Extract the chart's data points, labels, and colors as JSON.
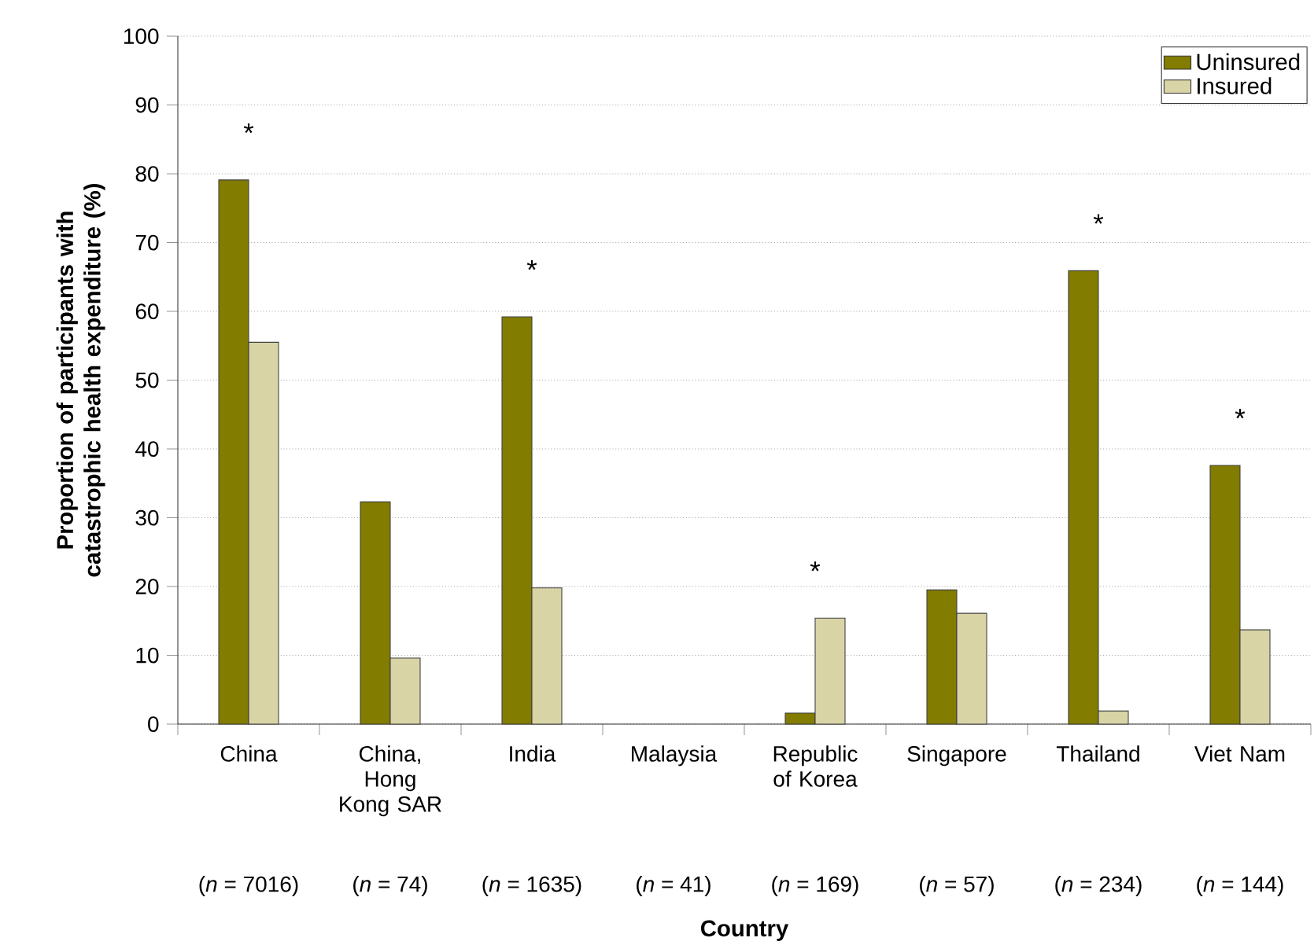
{
  "chart_data": {
    "type": "bar",
    "xlabel": "Country",
    "ylabel": "Proportion of participants with catastrophic health expenditure (%)",
    "categories": [
      "China",
      "China, Hong Kong SAR",
      "India",
      "Malaysia",
      "Republic of Korea",
      "Singapore",
      "Thailand",
      "Viet Nam"
    ],
    "series": [
      {
        "name": "Uninsured",
        "color": "#827c00",
        "values": [
          79.1,
          32.3,
          59.2,
          null,
          1.6,
          19.5,
          65.9,
          37.6
        ]
      },
      {
        "name": "Insured",
        "color": "#d9d4a6",
        "values": [
          55.5,
          9.6,
          19.8,
          null,
          15.4,
          16.1,
          1.9,
          13.7
        ]
      }
    ],
    "ylim": [
      0,
      100
    ],
    "yticks": [
      0,
      10,
      20,
      30,
      40,
      50,
      60,
      70,
      80,
      90,
      100
    ],
    "grid": "y",
    "legend": "top right",
    "annotations": [
      {
        "text": "*",
        "x": "China",
        "y": 79.1
      },
      {
        "text": "*",
        "x": "India",
        "y": 59.2
      },
      {
        "text": "*",
        "x": "Republic of Korea",
        "y": 15.4
      },
      {
        "text": "*",
        "x": "Thailand",
        "y": 65.9
      },
      {
        "text": "*",
        "x": "Viet Nam",
        "y": 37.6
      },
      "(*n* = 7016)",
      "(*n* = 74)",
      "(*n* = 1635)",
      "(*n* = 41)",
      "(*n* = 169)",
      "(*n* = 57)",
      "(*n* = 234)",
      "(*n* = 144)"
    ]
  }
}
